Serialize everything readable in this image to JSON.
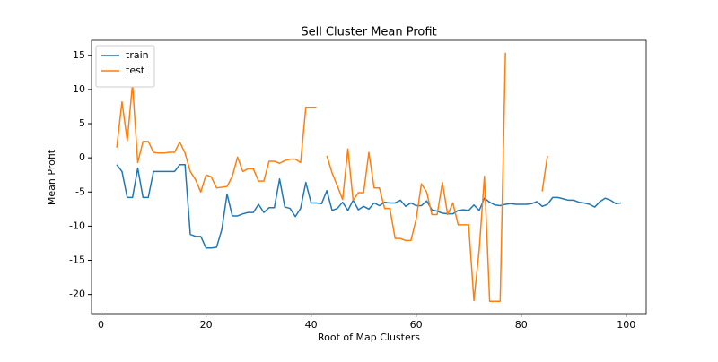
{
  "chart_data": {
    "type": "line",
    "title": "Sell Cluster Mean Profit",
    "x_label": "Root of Map Clusters",
    "y_label": "Mean Profit",
    "x": [
      3,
      4,
      5,
      6,
      7,
      8,
      9,
      10,
      11,
      12,
      13,
      14,
      15,
      16,
      17,
      18,
      19,
      20,
      21,
      22,
      23,
      24,
      25,
      26,
      27,
      28,
      29,
      30,
      31,
      32,
      33,
      34,
      35,
      36,
      37,
      38,
      39,
      40,
      41,
      42,
      43,
      44,
      45,
      46,
      47,
      48,
      49,
      50,
      51,
      52,
      53,
      54,
      55,
      56,
      57,
      58,
      59,
      60,
      61,
      62,
      63,
      64,
      65,
      66,
      67,
      68,
      69,
      70,
      71,
      72,
      73,
      74,
      75,
      76,
      77,
      78,
      79,
      80,
      81,
      82,
      83,
      84,
      85,
      86,
      87,
      88,
      89,
      90,
      91,
      92,
      93,
      94,
      95,
      96,
      97,
      98,
      99
    ],
    "series": [
      {
        "name": "train",
        "color": "#1f77b4",
        "values": [
          -1,
          -2,
          -5.8,
          -5.8,
          -1.5,
          -5.8,
          -5.8,
          -2,
          -2,
          -2,
          -2,
          -2,
          -1,
          -1,
          -11.2,
          -11.5,
          -11.5,
          -13.2,
          -13.2,
          -13.1,
          -10.5,
          -5.3,
          -8.5,
          -8.5,
          -8.2,
          -8,
          -8,
          -6.8,
          -8,
          -7.3,
          -7.3,
          -3.1,
          -7.2,
          -7.4,
          -8.6,
          -7.4,
          -3.6,
          -6.6,
          -6.6,
          -6.7,
          -4.8,
          -7.7,
          -7.4,
          -6.5,
          -7.7,
          -6.2,
          -7.6,
          -7.1,
          -7.5,
          -6.6,
          -7,
          -6.5,
          -6.6,
          -6.6,
          -6.2,
          -7.1,
          -6.6,
          -7,
          -7,
          -6.3,
          -7.6,
          -7.8,
          -8.1,
          -8.2,
          -8.2,
          -7.7,
          -7.6,
          -7.7,
          -6.9,
          -7.7,
          -5.9,
          -6.5,
          -6.9,
          -7,
          -6.8,
          -6.7,
          -6.8,
          -6.8,
          -6.8,
          -6.7,
          -6.4,
          -7.1,
          -6.8,
          -5.8,
          -5.8,
          -6,
          -6.2,
          -6.2,
          -6.5,
          -6.6,
          -6.8,
          -7.2,
          -6.4,
          -5.9,
          -6.2,
          -6.7,
          -6.6
        ]
      },
      {
        "name": "test",
        "color": "#ff7f0e",
        "values": [
          1.5,
          8.2,
          2.5,
          10.8,
          -0.7,
          2.4,
          2.4,
          0.8,
          0.7,
          0.7,
          0.8,
          0.8,
          2.3,
          0.7,
          -2,
          -3.2,
          -5,
          -2.5,
          -2.8,
          -4.4,
          -4.3,
          -4.2,
          -2.7,
          0.1,
          -2,
          -1.6,
          -1.6,
          -3.4,
          -3.4,
          -0.5,
          -0.5,
          -0.8,
          -0.4,
          -0.2,
          -0.2,
          -0.7,
          7.4,
          7.4,
          7.4,
          null,
          0.3,
          -2.2,
          -4.1,
          -6.1,
          1.3,
          -6.2,
          -5.1,
          -5.1,
          0.8,
          -4.4,
          -4.4,
          -7.4,
          -7.4,
          -11.8,
          -11.8,
          -12.1,
          -12.1,
          -9,
          -3.8,
          -5,
          -8.3,
          -8.3,
          -3.6,
          -8.3,
          -6.6,
          -9.8,
          -9.8,
          -9.8,
          -20.9,
          -13.5,
          -2.7,
          -21,
          -21,
          -21,
          15.4,
          null,
          null,
          null,
          null,
          null,
          null,
          -4.9,
          0.3,
          null,
          null,
          null,
          null,
          null,
          null,
          null,
          null,
          null,
          null,
          null,
          null,
          null,
          null
        ]
      }
    ],
    "xlim": [
      -1.8,
      103.8
    ],
    "xticks": [
      0,
      20,
      40,
      60,
      80,
      100
    ],
    "ylim": [
      -22.8,
      17.2
    ],
    "yticks": [
      -20,
      -15,
      -10,
      -5,
      0,
      5,
      10,
      15
    ],
    "grid": false,
    "legend": "upper left"
  }
}
